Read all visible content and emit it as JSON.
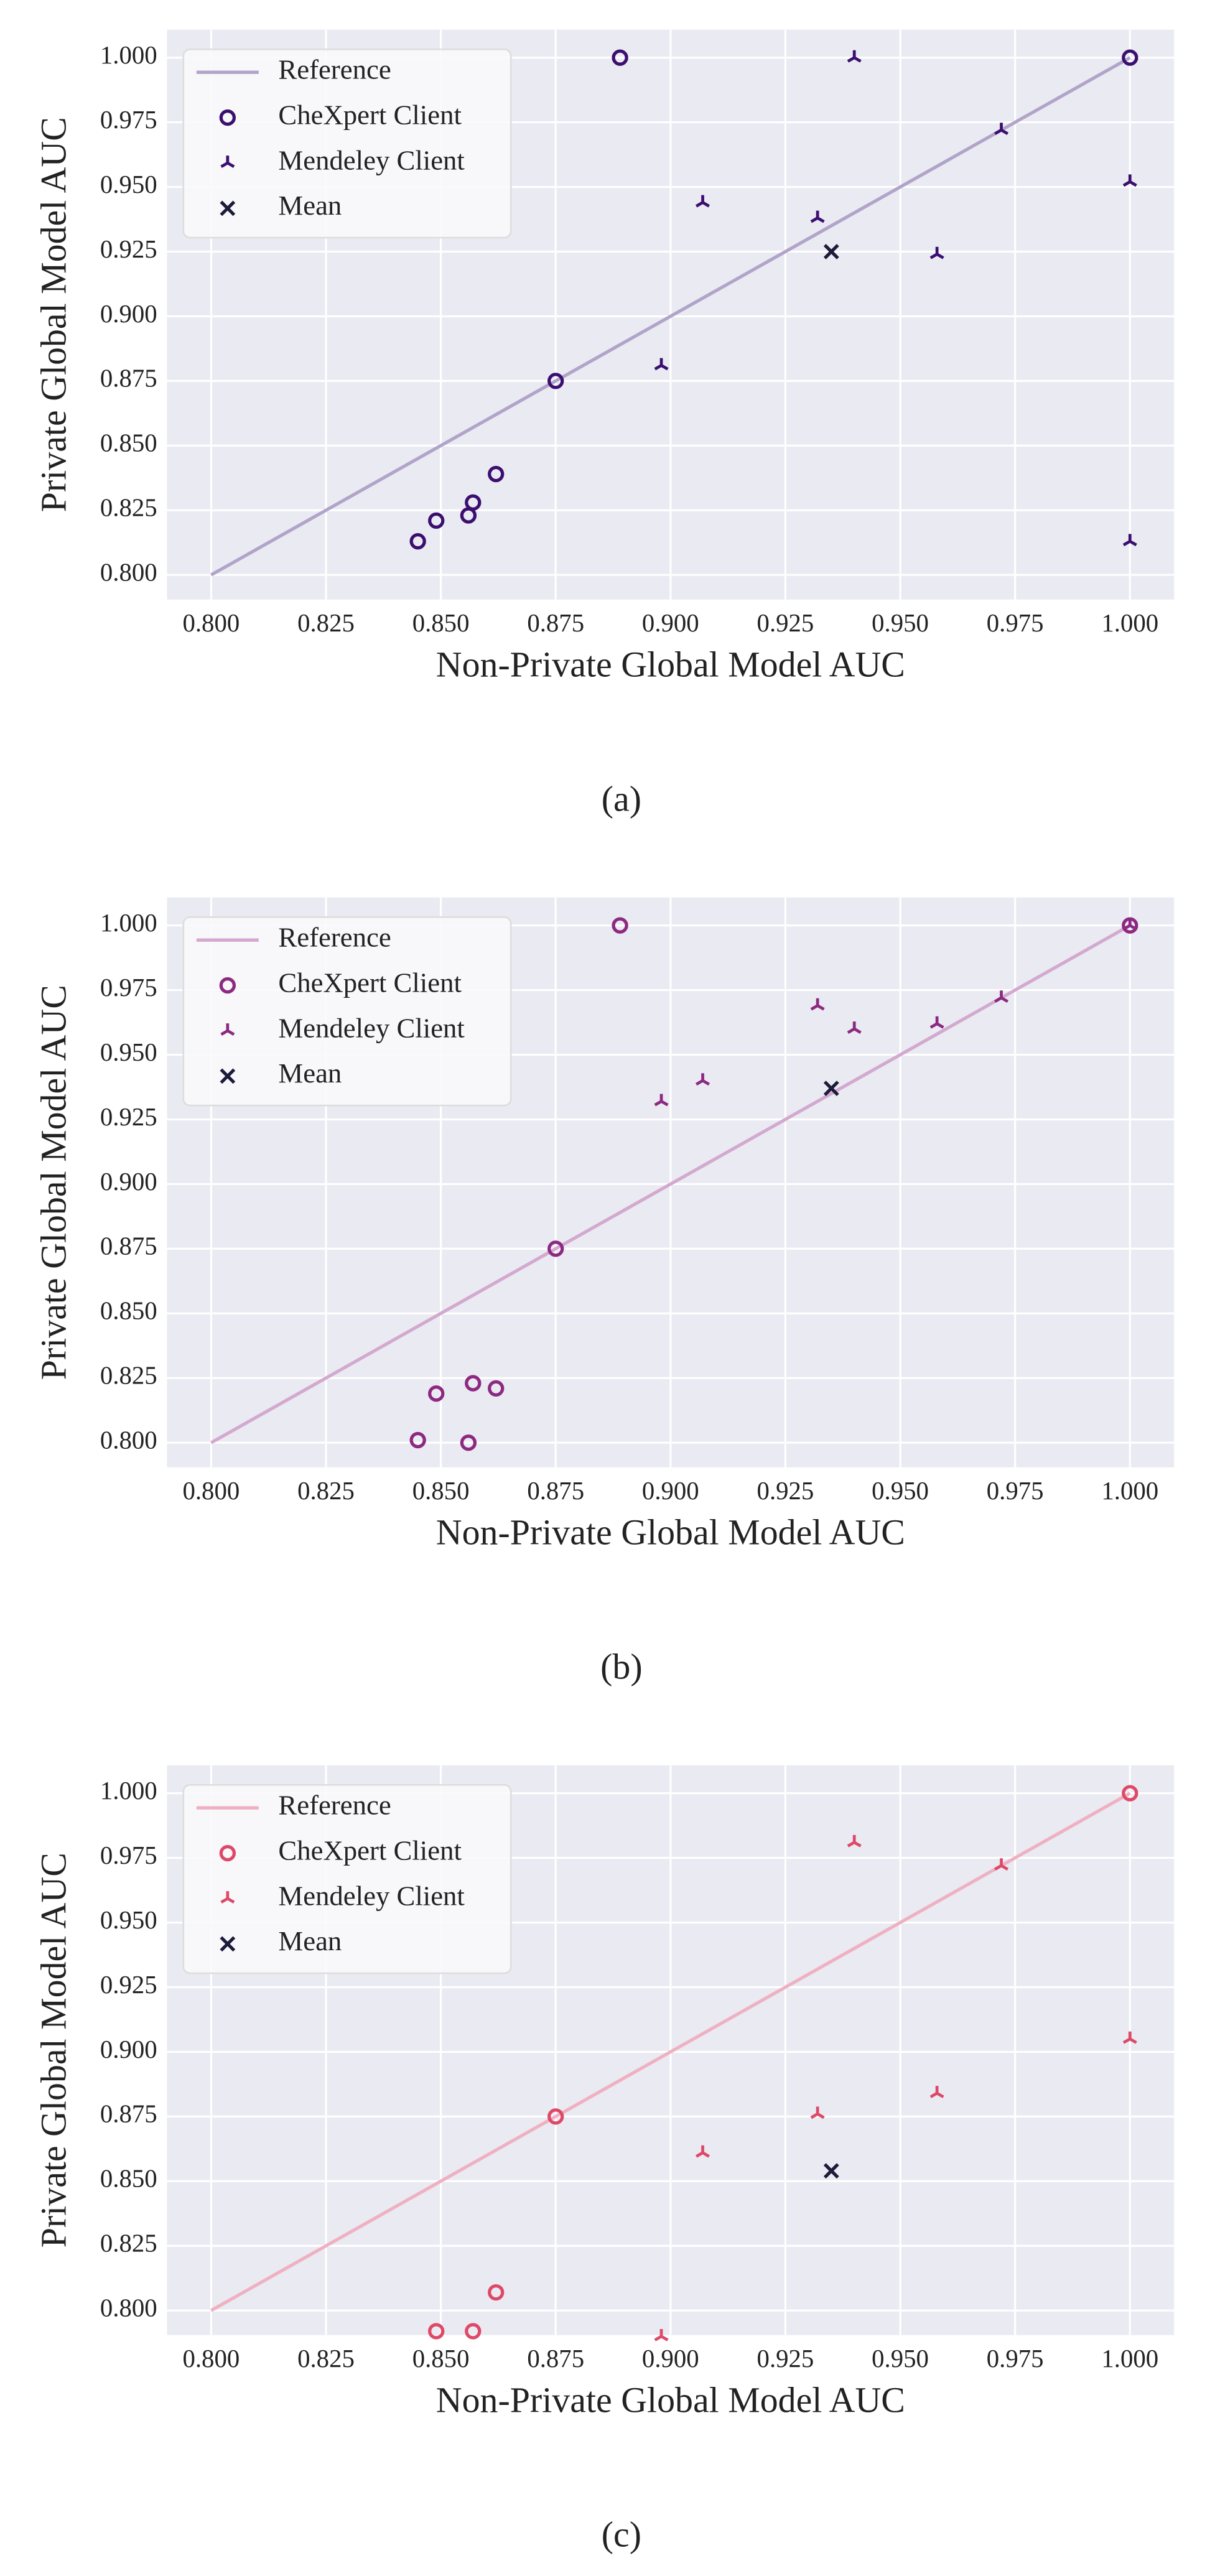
{
  "chart_data": [
    {
      "type": "scatter",
      "xlabel": "Non-Private Global Model AUC",
      "ylabel": "Private Global Model AUC",
      "caption": "(a)",
      "xlim": [
        0.7904,
        1.0096
      ],
      "ylim": [
        0.7905,
        1.0108
      ],
      "xticks": [
        {
          "value": 0.8,
          "label": "0.800"
        },
        {
          "value": 0.825,
          "label": "0.825"
        },
        {
          "value": 0.85,
          "label": "0.850"
        },
        {
          "value": 0.875,
          "label": "0.875"
        },
        {
          "value": 0.9,
          "label": "0.900"
        },
        {
          "value": 0.925,
          "label": "0.925"
        },
        {
          "value": 0.95,
          "label": "0.950"
        },
        {
          "value": 0.975,
          "label": "0.975"
        },
        {
          "value": 1.0,
          "label": "1.000"
        }
      ],
      "yticks": [
        {
          "value": 0.8,
          "label": "0.800"
        },
        {
          "value": 0.825,
          "label": "0.825"
        },
        {
          "value": 0.85,
          "label": "0.850"
        },
        {
          "value": 0.875,
          "label": "0.875"
        },
        {
          "value": 0.9,
          "label": "0.900"
        },
        {
          "value": 0.925,
          "label": "0.925"
        },
        {
          "value": 0.95,
          "label": "0.950"
        },
        {
          "value": 0.975,
          "label": "0.975"
        },
        {
          "value": 1.0,
          "label": "1.000"
        }
      ],
      "grid": true,
      "legend": "upper left",
      "series": [
        {
          "name": "Reference",
          "mode": "line",
          "color": "#b1a4c9",
          "x": [
            0.8,
            1.0
          ],
          "values": [
            0.8,
            1.0
          ]
        },
        {
          "name": "CheXpert Client",
          "marker": "o",
          "color": "#3b0f70",
          "x": [
            0.845,
            0.849,
            0.856,
            0.857,
            0.862,
            0.875,
            0.889,
            1.0
          ],
          "values": [
            0.813,
            0.821,
            0.823,
            0.828,
            0.839,
            0.875,
            1.0,
            1.0
          ]
        },
        {
          "name": "Mendeley Client",
          "marker": "tri",
          "color": "#3b0f70",
          "x": [
            0.898,
            0.907,
            0.932,
            0.94,
            0.958,
            0.972,
            1.0,
            1.0
          ],
          "values": [
            0.881,
            0.944,
            0.938,
            1.0,
            0.924,
            0.972,
            0.952,
            0.813
          ]
        },
        {
          "name": "Mean",
          "marker": "x",
          "color": "#1c1b3a",
          "x": [
            0.935
          ],
          "values": [
            0.925
          ]
        }
      ]
    },
    {
      "type": "scatter",
      "xlabel": "Non-Private Global Model AUC",
      "ylabel": "Private Global Model AUC",
      "caption": "(b)",
      "xlim": [
        0.7904,
        1.0096
      ],
      "ylim": [
        0.7905,
        1.0108
      ],
      "xticks": [
        {
          "value": 0.8,
          "label": "0.800"
        },
        {
          "value": 0.825,
          "label": "0.825"
        },
        {
          "value": 0.85,
          "label": "0.850"
        },
        {
          "value": 0.875,
          "label": "0.875"
        },
        {
          "value": 0.9,
          "label": "0.900"
        },
        {
          "value": 0.925,
          "label": "0.925"
        },
        {
          "value": 0.95,
          "label": "0.950"
        },
        {
          "value": 0.975,
          "label": "0.975"
        },
        {
          "value": 1.0,
          "label": "1.000"
        }
      ],
      "yticks": [
        {
          "value": 0.8,
          "label": "0.800"
        },
        {
          "value": 0.825,
          "label": "0.825"
        },
        {
          "value": 0.85,
          "label": "0.850"
        },
        {
          "value": 0.875,
          "label": "0.875"
        },
        {
          "value": 0.9,
          "label": "0.900"
        },
        {
          "value": 0.925,
          "label": "0.925"
        },
        {
          "value": 0.95,
          "label": "0.950"
        },
        {
          "value": 0.975,
          "label": "0.975"
        },
        {
          "value": 1.0,
          "label": "1.000"
        }
      ],
      "grid": true,
      "legend": "upper left",
      "series": [
        {
          "name": "Reference",
          "mode": "line",
          "color": "#d3a9cf",
          "x": [
            0.8,
            1.0
          ],
          "values": [
            0.8,
            1.0
          ]
        },
        {
          "name": "CheXpert Client",
          "marker": "o",
          "color": "#8c2981",
          "x": [
            0.845,
            0.849,
            0.856,
            0.857,
            0.862,
            0.875,
            0.889,
            1.0
          ],
          "values": [
            0.801,
            0.819,
            0.8,
            0.823,
            0.821,
            0.875,
            1.0,
            1.0
          ]
        },
        {
          "name": "Mendeley Client",
          "marker": "tri",
          "color": "#8c2981",
          "x": [
            0.898,
            0.907,
            0.932,
            0.94,
            0.958,
            0.972,
            1.0
          ],
          "values": [
            0.932,
            0.94,
            0.969,
            0.96,
            0.962,
            0.972,
            1.0
          ]
        },
        {
          "name": "Mean",
          "marker": "x",
          "color": "#1c1b3a",
          "x": [
            0.935
          ],
          "values": [
            0.937
          ]
        }
      ]
    },
    {
      "type": "scatter",
      "xlabel": "Non-Private Global Model AUC",
      "ylabel": "Private Global Model AUC",
      "caption": "(c)",
      "xlim": [
        0.7904,
        1.0096
      ],
      "ylim": [
        0.7905,
        1.0108
      ],
      "xticks": [
        {
          "value": 0.8,
          "label": "0.800"
        },
        {
          "value": 0.825,
          "label": "0.825"
        },
        {
          "value": 0.85,
          "label": "0.850"
        },
        {
          "value": 0.875,
          "label": "0.875"
        },
        {
          "value": 0.9,
          "label": "0.900"
        },
        {
          "value": 0.925,
          "label": "0.925"
        },
        {
          "value": 0.95,
          "label": "0.950"
        },
        {
          "value": 0.975,
          "label": "0.975"
        },
        {
          "value": 1.0,
          "label": "1.000"
        }
      ],
      "yticks": [
        {
          "value": 0.8,
          "label": "0.800"
        },
        {
          "value": 0.825,
          "label": "0.825"
        },
        {
          "value": 0.85,
          "label": "0.850"
        },
        {
          "value": 0.875,
          "label": "0.875"
        },
        {
          "value": 0.9,
          "label": "0.900"
        },
        {
          "value": 0.925,
          "label": "0.925"
        },
        {
          "value": 0.95,
          "label": "0.950"
        },
        {
          "value": 0.975,
          "label": "0.975"
        },
        {
          "value": 1.0,
          "label": "1.000"
        }
      ],
      "grid": true,
      "legend": "upper left",
      "series": [
        {
          "name": "Reference",
          "mode": "line",
          "color": "#efb1c1",
          "x": [
            0.8,
            1.0
          ],
          "values": [
            0.8,
            1.0
          ]
        },
        {
          "name": "CheXpert Client",
          "marker": "o",
          "color": "#de4968",
          "x": [
            0.849,
            0.857,
            0.862,
            0.875,
            1.0
          ],
          "values": [
            0.792,
            0.792,
            0.807,
            0.875,
            1.0
          ]
        },
        {
          "name": "Mendeley Client",
          "marker": "tri",
          "color": "#de4968",
          "x": [
            0.898,
            0.907,
            0.932,
            0.94,
            0.958,
            0.972,
            1.0
          ],
          "values": [
            0.79,
            0.861,
            0.876,
            0.981,
            0.884,
            0.972,
            0.905
          ]
        },
        {
          "name": "Mean",
          "marker": "x",
          "color": "#1c1b3a",
          "x": [
            0.935
          ],
          "values": [
            0.854
          ]
        }
      ]
    }
  ]
}
